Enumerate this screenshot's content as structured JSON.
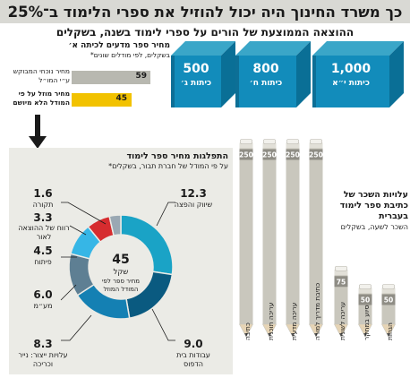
{
  "title": "כך משרד החינוך היה יכול להוזיל את ספרי הלימוד ב־25%",
  "subtitle": "ההוצאה הממוצעת של הורים על ספרי לימוד בשנה, בשקלים",
  "books": [
    {
      "value": "1,000",
      "label": "כיתות י״א"
    },
    {
      "value": "800",
      "label": "כיתות ח׳"
    },
    {
      "value": "500",
      "label": "כיתות ג׳"
    }
  ],
  "price_compare": {
    "title": "מחיר ספר מדעים לכיתה א׳",
    "subtitle": "בשקלים, לפי מודלים שונים*",
    "rows": [
      {
        "label": "מחיר נוכחי המבוקש ע״י המו״ל",
        "value": 59,
        "color": "#b8b8b0"
      },
      {
        "label": "מחיר מוזל על פי המודל הלא מיושם",
        "value": 45,
        "color": "#f2c200"
      }
    ]
  },
  "chart_data": [
    {
      "type": "pie",
      "title": "התפלגות מחיר ספר לימוד",
      "subtitle": "על פי המודל של חברת תבור, בשקלים*",
      "center": {
        "value": "45",
        "unit": "שקל",
        "caption": "מחיר ספר לפי המודל המוזל"
      },
      "slices": [
        {
          "label": "שיווק והפצה",
          "value": 12.3,
          "color": "#1aa3c6"
        },
        {
          "label": "עבודות בית הדפוס",
          "value": 9.0,
          "color": "#0a5a80"
        },
        {
          "label": "עלויות ייצור: נייר וכריכה",
          "value": 8.3,
          "color": "#1480b3"
        },
        {
          "label": "מע״מ",
          "value": 6.0,
          "color": "#5e7f93"
        },
        {
          "label": "פיתוח",
          "value": 4.5,
          "color": "#36b6e6"
        },
        {
          "label": "רווח של ההוצאה לאור",
          "value": 3.3,
          "color": "#d62c2f"
        },
        {
          "label": "תקורה",
          "value": 1.6,
          "color": "#9aa8b3"
        }
      ]
    },
    {
      "type": "bar",
      "title": "עלויות השכר של כתיבת ספר לימוד בעברית",
      "subtitle": "השכר לשעה, בשקלים",
      "categories": [
        "כתיבה",
        "עריכה תוכנית",
        "עריכה מדעית",
        "כתיבת מדריך למורה",
        "עריכה לשונית",
        "סיוע במחקר",
        "הגהות"
      ],
      "values": [
        250,
        250,
        250,
        250,
        75,
        50,
        50
      ]
    }
  ]
}
